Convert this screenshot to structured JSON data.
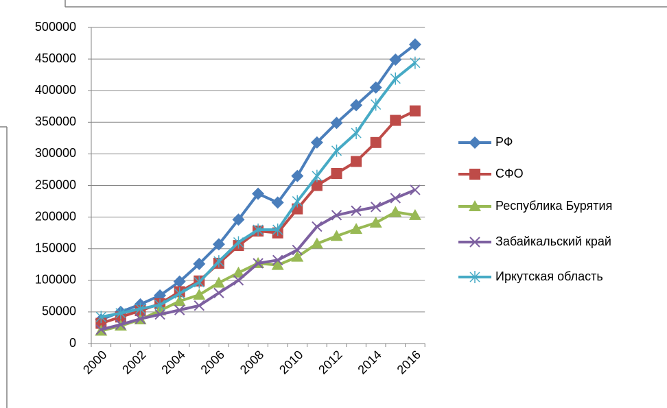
{
  "chart_data": {
    "type": "line",
    "categories": [
      "2000",
      null,
      "2002",
      null,
      "2004",
      null,
      "2006",
      null,
      "2008",
      null,
      "2010",
      null,
      "2012",
      null,
      "2014",
      null,
      "2016"
    ],
    "series": [
      {
        "name": "РФ",
        "color": "#4a7ebb",
        "marker": "diamond",
        "values": [
          38000,
          50000,
          62000,
          76000,
          98000,
          126000,
          157000,
          196000,
          237000,
          223000,
          265000,
          318000,
          349000,
          377000,
          405000,
          449000,
          473000
        ]
      },
      {
        "name": "СФО",
        "color": "#be4b48",
        "marker": "square",
        "values": [
          32000,
          42000,
          52000,
          63000,
          82000,
          99000,
          127000,
          155000,
          178000,
          175000,
          213000,
          250000,
          269000,
          288000,
          318000,
          353000,
          368000
        ]
      },
      {
        "name": "Республика Бурятия",
        "color": "#98b954",
        "marker": "triangle",
        "values": [
          20000,
          28000,
          38000,
          52000,
          67000,
          77000,
          96000,
          112000,
          127000,
          124000,
          137000,
          158000,
          170000,
          181000,
          191000,
          208000,
          203000
        ]
      },
      {
        "name": "Забайкальский край",
        "color": "#7d60a0",
        "marker": "x",
        "values": [
          22000,
          30000,
          39000,
          46000,
          53000,
          60000,
          80000,
          100000,
          127000,
          132000,
          148000,
          185000,
          203000,
          210000,
          216000,
          230000,
          243000
        ]
      },
      {
        "name": "Иркутская область",
        "color": "#46aac5",
        "marker": "star",
        "values": [
          42000,
          48000,
          55000,
          61000,
          79000,
          97000,
          130000,
          160000,
          180000,
          180000,
          225000,
          265000,
          305000,
          333000,
          378000,
          419000,
          444000
        ]
      }
    ],
    "ylim": [
      0,
      500000
    ],
    "yticks": [
      0,
      50000,
      100000,
      150000,
      200000,
      250000,
      300000,
      350000,
      400000,
      450000,
      500000
    ],
    "grid": true,
    "legend": "right"
  }
}
